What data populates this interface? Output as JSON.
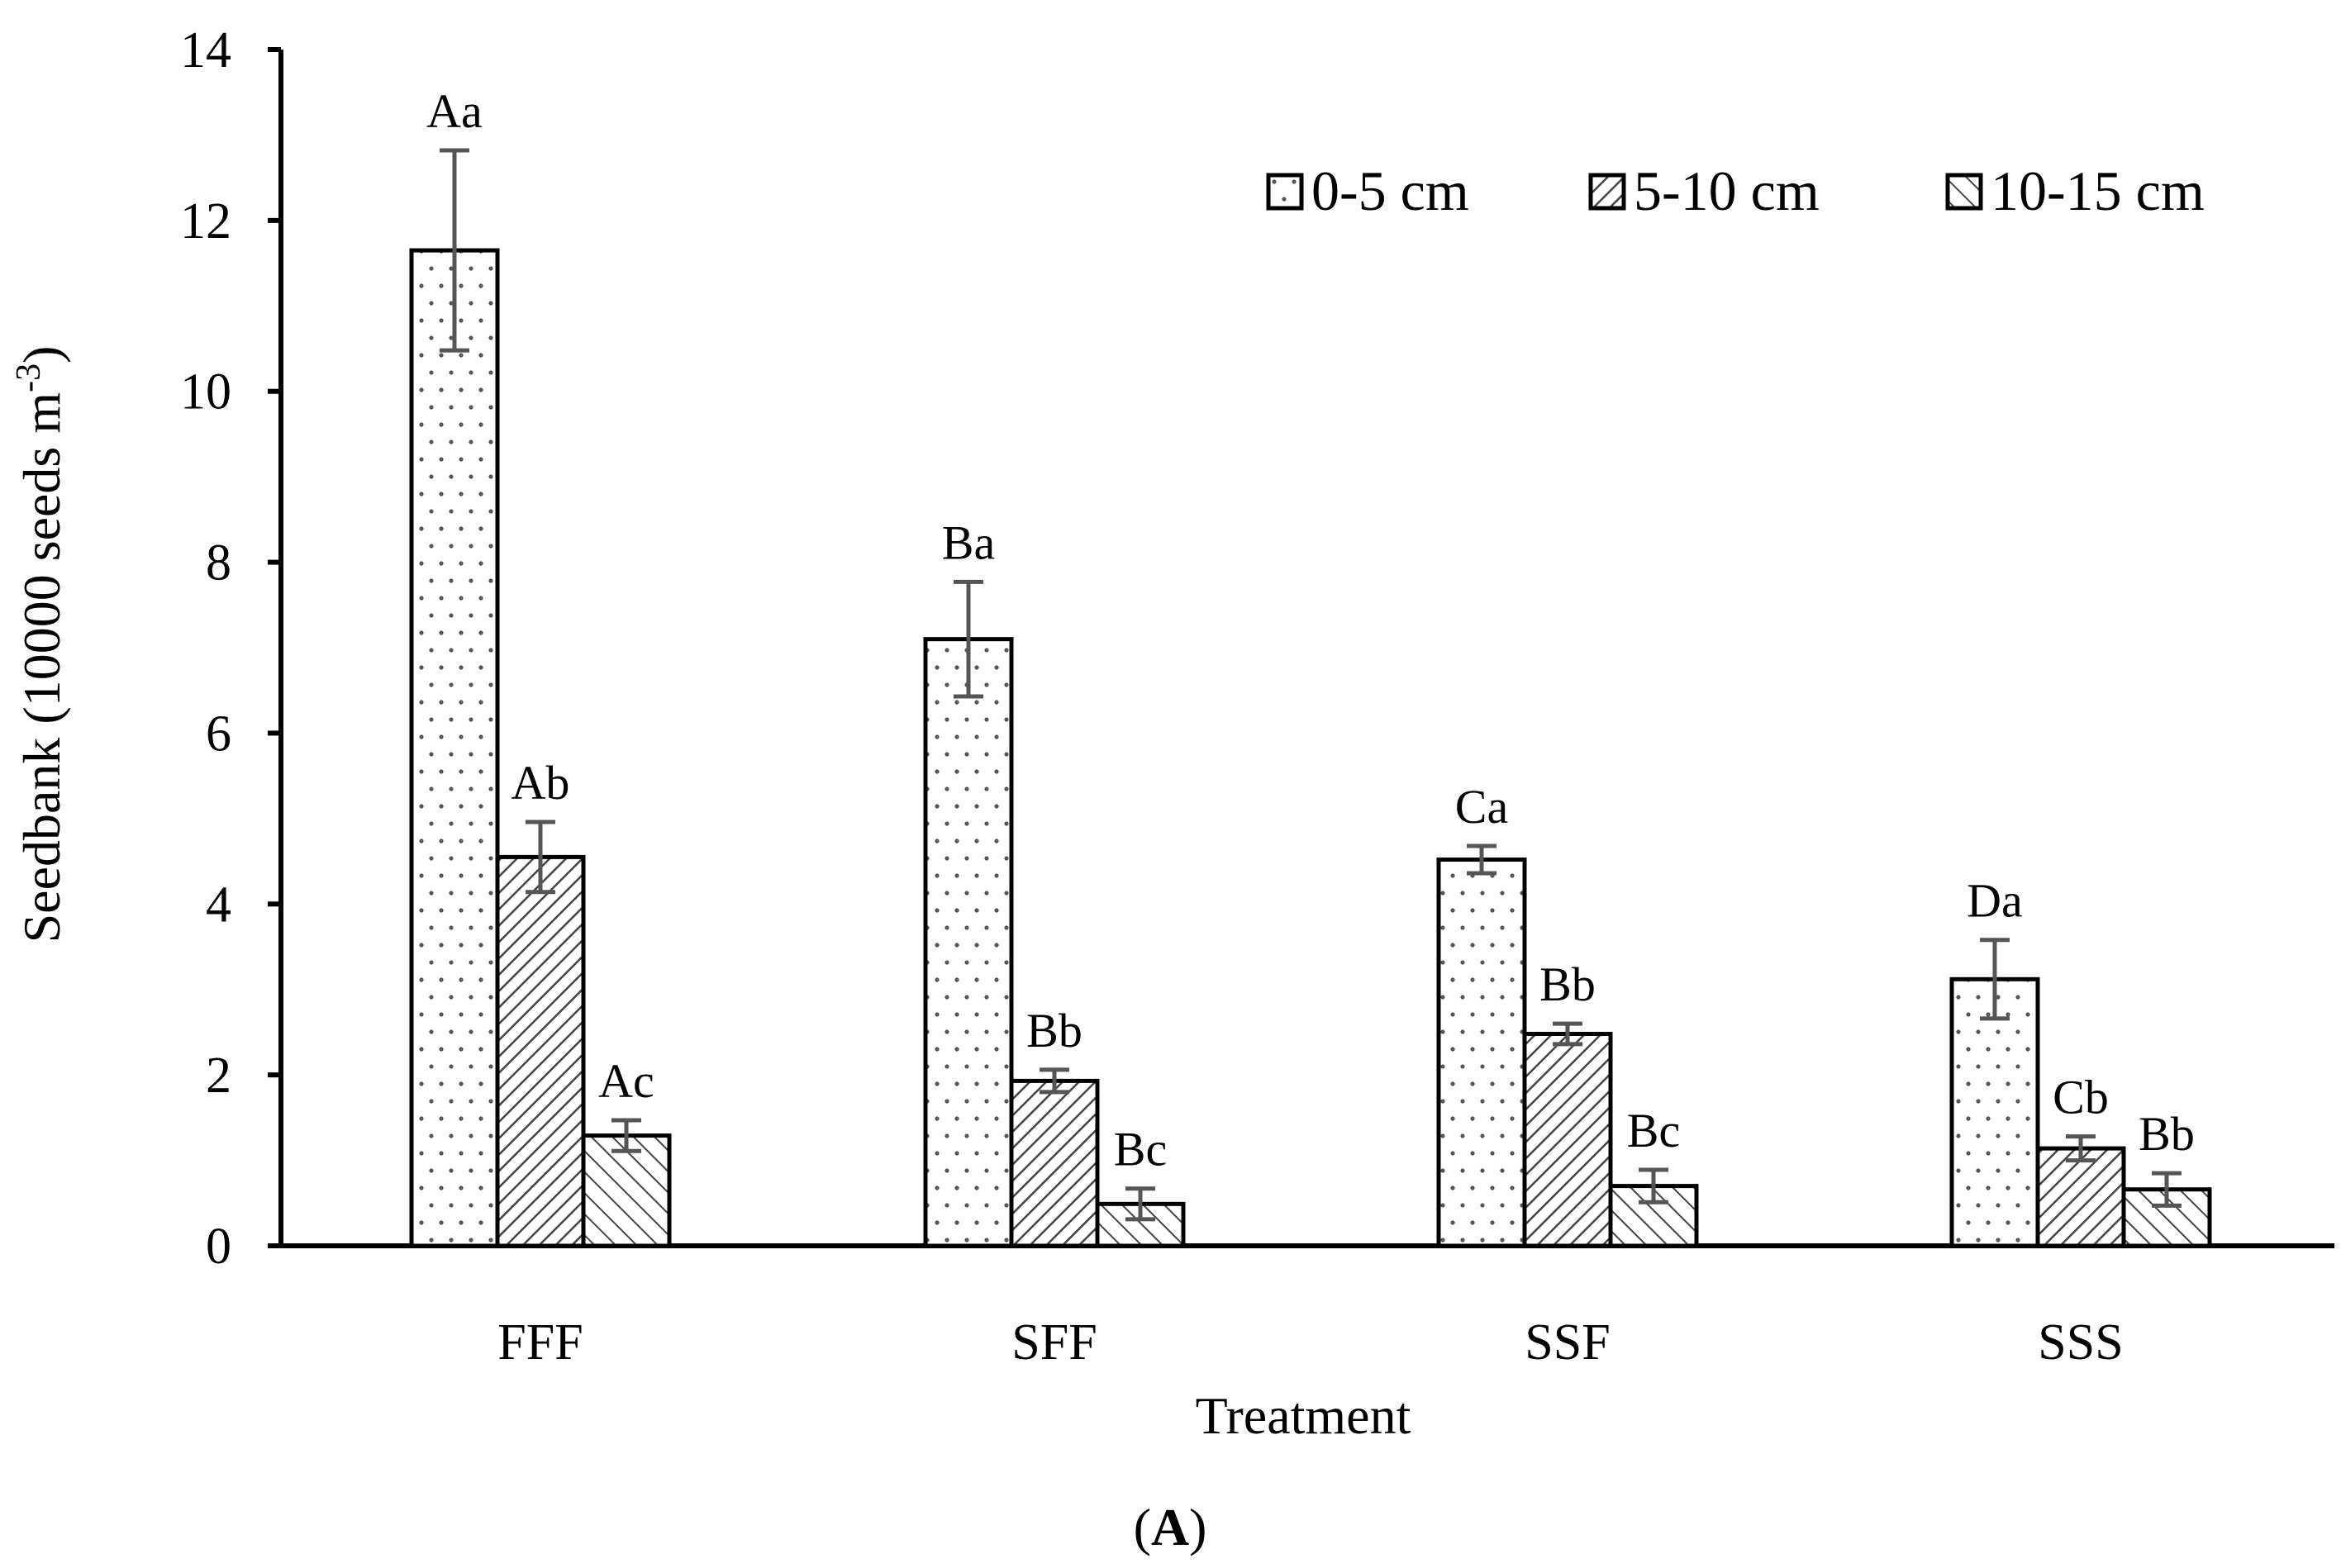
{
  "chart_data": {
    "type": "bar",
    "title": "",
    "panel_label": "A",
    "xlabel": "Treatment",
    "ylabel": "Seedbank  (10000 seeds m",
    "ylabel_superscript": "-3",
    "ylabel_close": ")",
    "ylim": [
      0,
      14
    ],
    "yticks": [
      "0",
      "2",
      "4",
      "6",
      "8",
      "10",
      "12",
      "14"
    ],
    "categories": [
      "FFF",
      "SFF",
      "SSF",
      "SSS"
    ],
    "series": [
      {
        "name": "0-5 cm",
        "pattern": "dots",
        "values": [
          11.65,
          7.1,
          4.52,
          3.12
        ],
        "errors": [
          1.17,
          0.67,
          0.16,
          0.46
        ],
        "labels": [
          "Aa",
          "Ba",
          "Ca",
          "Da"
        ]
      },
      {
        "name": "5-10 cm",
        "pattern": "dense-diagonal",
        "values": [
          4.55,
          1.93,
          2.48,
          1.14
        ],
        "errors": [
          0.41,
          0.13,
          0.12,
          0.14
        ],
        "labels": [
          "Ab",
          "Bb",
          "Bb",
          "Cb"
        ]
      },
      {
        "name": "10-15 cm",
        "pattern": "sparse-diagonal",
        "values": [
          1.29,
          0.49,
          0.7,
          0.66
        ],
        "errors": [
          0.18,
          0.18,
          0.19,
          0.19
        ],
        "labels": [
          "Ac",
          "Bc",
          "Bc",
          "Bb"
        ]
      }
    ],
    "legend_position": "top-right",
    "grid": false
  },
  "colors": {
    "bar_fill": "#ffffff",
    "bar_stroke": "#000000",
    "error_bar": "#555555",
    "pattern_ink": "#555555"
  }
}
